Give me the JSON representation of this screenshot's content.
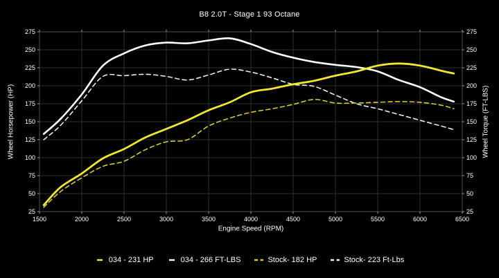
{
  "colors": {
    "background": "#000000",
    "text": "#ffffff",
    "grid": "#2e2e2e",
    "spine": "#4f4f4f",
    "tick": "#9a9a9a",
    "accent_yellow": "#f2e72e",
    "accent_yellow_dim": "#d8ce2b",
    "accent_white": "#ffffff",
    "accent_white_dim": "#ededed"
  },
  "chart_data": {
    "type": "line",
    "title": "B8 2.0T - Stage 1 93 Octane",
    "xlabel": "Engine Speed (RPM)",
    "ylabel_left": "Wheel Horsepower (HP)",
    "ylabel_right": "Wheel Torque (FT-LBS)",
    "xlim": [
      1500,
      6500
    ],
    "ylim": [
      25,
      275
    ],
    "x_ticks": [
      1500,
      2000,
      2500,
      3000,
      3500,
      4000,
      4500,
      5000,
      5500,
      6000,
      6500
    ],
    "y_ticks": [
      25,
      50,
      75,
      100,
      125,
      150,
      175,
      200,
      225,
      250,
      275
    ],
    "grid": true,
    "legend_position": "bottom",
    "x": [
      1550,
      1750,
      2000,
      2250,
      2500,
      2750,
      3000,
      3250,
      3500,
      3750,
      4000,
      4250,
      4500,
      4750,
      5000,
      5250,
      5500,
      5750,
      6000,
      6250,
      6400
    ],
    "series": [
      {
        "name": "034 - 231 HP",
        "axis": "left",
        "color": "#f2e72e",
        "style": "solid",
        "width": 2.8,
        "values": [
          34,
          59,
          78,
          99,
          112,
          128,
          140,
          152,
          166,
          177,
          191,
          196,
          202,
          207,
          214,
          220,
          228,
          231,
          228,
          221,
          217
        ]
      },
      {
        "name": "034 - 266 FT-LBS",
        "axis": "right",
        "color": "#ffffff",
        "style": "solid",
        "width": 2.6,
        "values": [
          133,
          154,
          188,
          228,
          245,
          256,
          260,
          259,
          263,
          266,
          258,
          247,
          239,
          233,
          229,
          226,
          220,
          208,
          198,
          184,
          178
        ]
      },
      {
        "name": "Stock- 182 HP",
        "axis": "left",
        "color": "#d8ce2b",
        "style": "dashed",
        "width": 1.6,
        "values": [
          31,
          53,
          72,
          88,
          95,
          111,
          122,
          125,
          144,
          155,
          163,
          168,
          174,
          181,
          176,
          176,
          177,
          178,
          177,
          173,
          168
        ]
      },
      {
        "name": "Stock- 223 Ft-Lbs",
        "axis": "right",
        "color": "#ededed",
        "style": "dashed",
        "width": 1.6,
        "values": [
          125,
          145,
          179,
          213,
          214,
          216,
          213,
          208,
          215,
          223,
          219,
          211,
          202,
          199,
          187,
          175,
          168,
          160,
          152,
          144,
          139
        ]
      }
    ]
  }
}
